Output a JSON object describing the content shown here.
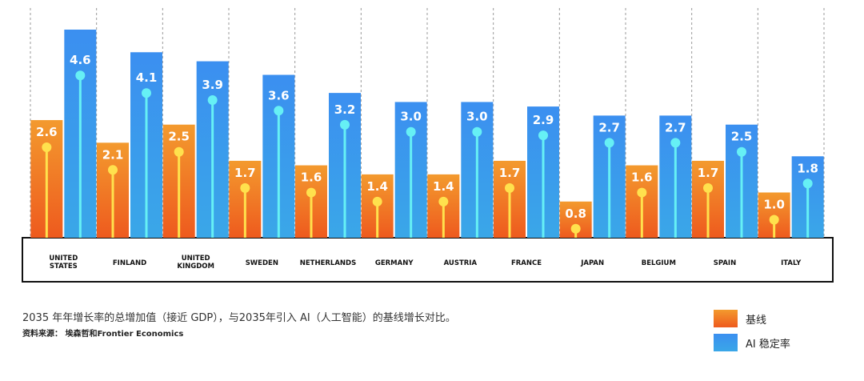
{
  "chart_data": {
    "type": "bar",
    "categories": [
      "UNITED\nSTATES",
      "FINLAND",
      "UNITED\nKINGDOM",
      "SWEDEN",
      "NETHERLANDS",
      "GERMANY",
      "AUSTRIA",
      "FRANCE",
      "JAPAN",
      "BELGIUM",
      "SPAIN",
      "ITALY"
    ],
    "series": [
      {
        "name": "基线",
        "values": [
          2.6,
          2.1,
          2.5,
          1.7,
          1.6,
          1.4,
          1.4,
          1.7,
          0.8,
          1.6,
          1.7,
          1.0
        ]
      },
      {
        "name": "AI 稳定率",
        "values": [
          4.6,
          4.1,
          3.9,
          3.6,
          3.2,
          3.0,
          3.0,
          2.9,
          2.7,
          2.7,
          2.5,
          1.8
        ]
      }
    ],
    "ylim": [
      0,
      4.6
    ],
    "grid": "vertical dashed separators",
    "legend_position": "bottom-right"
  },
  "colors": {
    "baseline_top": "#f39a2e",
    "baseline_bottom": "#ee5a1e",
    "baseline_stick": "#ffe14d",
    "ai_top": "#3b8ff0",
    "ai_bottom": "#3aa7e8",
    "ai_stick": "#66f0f5"
  },
  "caption": "2035 年年增长率的总增加值（接近 GDP），与2035年引入 AI（人工智能）的基线增长对比。",
  "source": "资料来源： 埃森哲和Frontier Economics",
  "legend": {
    "baseline_label": "基线",
    "ai_label": "AI 稳定率"
  }
}
